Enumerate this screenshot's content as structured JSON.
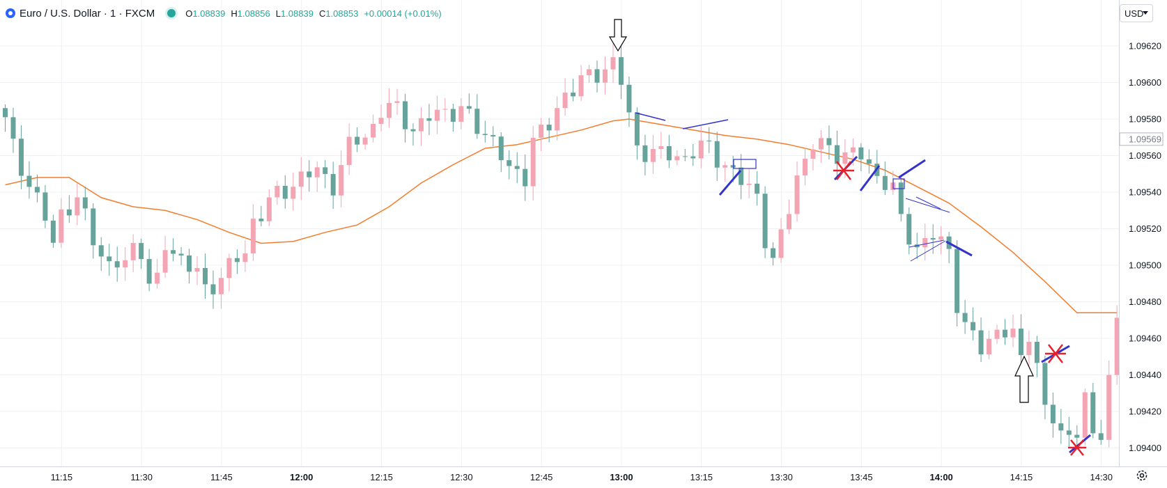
{
  "header": {
    "symbol_title": "Euro / U.S. Dollar · 1 · FXCM",
    "ohlc": [
      {
        "k": "O",
        "v": "1.08839"
      },
      {
        "k": "H",
        "v": "1.08856"
      },
      {
        "k": "L",
        "v": "1.08839"
      },
      {
        "k": "C",
        "v": "1.08853"
      }
    ],
    "change": "+0.00014 (+0.01%)",
    "currency": "USD"
  },
  "icons": {
    "logo": "fxcm-logo-icon",
    "status": "market-open-dot-icon",
    "currency_dropdown": "chevron-down-icon",
    "settings": "gear-icon"
  },
  "colors": {
    "up": "#f4a5b4",
    "down": "#66a39b",
    "ma": "#f57c2b",
    "grid": "#eef0f4",
    "axis_text": "#131722",
    "annot_blue": "#3333cc",
    "annot_red": "#e8202a"
  },
  "chart_data": {
    "type": "candlestick",
    "ylim": [
      1.09388,
      1.09634
    ],
    "y_ticks": [
      "1.09620",
      "1.09600",
      "1.09580",
      "1.09560",
      "1.09540",
      "1.09520",
      "1.09500",
      "1.09480",
      "1.09460",
      "1.09440",
      "1.09420",
      "1.09400"
    ],
    "current_price_label": "1.09569",
    "x_ticks": [
      {
        "label": "11:15",
        "bar": 7,
        "bold": false
      },
      {
        "label": "11:30",
        "bar": 17,
        "bold": false
      },
      {
        "label": "11:45",
        "bar": 27,
        "bold": false
      },
      {
        "label": "12:00",
        "bar": 37,
        "bold": true
      },
      {
        "label": "12:15",
        "bar": 47,
        "bold": false
      },
      {
        "label": "12:30",
        "bar": 57,
        "bold": false
      },
      {
        "label": "12:45",
        "bar": 67,
        "bold": false
      },
      {
        "label": "13:00",
        "bar": 77,
        "bold": true
      },
      {
        "label": "13:15",
        "bar": 87,
        "bold": false
      },
      {
        "label": "13:30",
        "bar": 97,
        "bold": false
      },
      {
        "label": "13:45",
        "bar": 107,
        "bold": false
      },
      {
        "label": "14:00",
        "bar": 117,
        "bold": true
      },
      {
        "label": "14:15",
        "bar": 127,
        "bold": false
      },
      {
        "label": "14:30",
        "bar": 137,
        "bold": false
      }
    ],
    "anchors": [
      [
        0,
        1.09578
      ],
      [
        1,
        1.09565
      ],
      [
        3,
        1.09545
      ],
      [
        5,
        1.09525
      ],
      [
        6,
        1.09512
      ],
      [
        7,
        1.0953
      ],
      [
        9,
        1.09535
      ],
      [
        11,
        1.09515
      ],
      [
        13,
        1.095
      ],
      [
        15,
        1.095
      ],
      [
        16,
        1.0951
      ],
      [
        17,
        1.0951
      ],
      [
        18,
        1.0949
      ],
      [
        19,
        1.0949
      ],
      [
        20,
        1.0951
      ],
      [
        22,
        1.09505
      ],
      [
        24,
        1.09495
      ],
      [
        25,
        1.09485
      ],
      [
        28,
        1.095
      ],
      [
        30,
        1.09505
      ],
      [
        31,
        1.09525
      ],
      [
        33,
        1.09535
      ],
      [
        35,
        1.0954
      ],
      [
        37,
        1.0955
      ],
      [
        39,
        1.0955
      ],
      [
        41,
        1.09545
      ],
      [
        43,
        1.09565
      ],
      [
        45,
        1.0957
      ],
      [
        47,
        1.09585
      ],
      [
        49,
        1.09585
      ],
      [
        51,
        1.09575
      ],
      [
        53,
        1.0958
      ],
      [
        55,
        1.09585
      ],
      [
        57,
        1.09585
      ],
      [
        59,
        1.09575
      ],
      [
        61,
        1.0957
      ],
      [
        63,
        1.0955
      ],
      [
        65,
        1.0955
      ],
      [
        66,
        1.0957
      ],
      [
        68,
        1.09575
      ],
      [
        70,
        1.09595
      ],
      [
        72,
        1.096
      ],
      [
        74,
        1.09605
      ],
      [
        76,
        1.09612
      ],
      [
        77,
        1.096
      ],
      [
        78,
        1.0958
      ],
      [
        79,
        1.09565
      ],
      [
        82,
        1.0956
      ],
      [
        85,
        1.0956
      ],
      [
        88,
        1.09565
      ],
      [
        90,
        1.09555
      ],
      [
        92,
        1.09545
      ],
      [
        94,
        1.0954
      ],
      [
        95,
        1.09515
      ],
      [
        96,
        1.095
      ],
      [
        97,
        1.09515
      ],
      [
        99,
        1.0955
      ],
      [
        101,
        1.09565
      ],
      [
        103,
        1.09565
      ],
      [
        105,
        1.0956
      ],
      [
        107,
        1.0956
      ],
      [
        109,
        1.0955
      ],
      [
        111,
        1.0954
      ],
      [
        112,
        1.09525
      ],
      [
        114,
        1.0951
      ],
      [
        116,
        1.09515
      ],
      [
        118,
        1.0951
      ],
      [
        119,
        1.0948
      ],
      [
        120,
        1.09465
      ],
      [
        122,
        1.09455
      ],
      [
        124,
        1.09465
      ],
      [
        126,
        1.0946
      ],
      [
        127,
        1.0945
      ],
      [
        128,
        1.09465
      ],
      [
        129,
        1.09445
      ],
      [
        130,
        1.0942
      ],
      [
        131,
        1.09415
      ],
      [
        132,
        1.09408
      ],
      [
        134,
        1.0941
      ],
      [
        135,
        1.09425
      ],
      [
        136,
        1.09405
      ],
      [
        137,
        1.0941
      ],
      [
        138,
        1.0944
      ],
      [
        139,
        1.0947
      ]
    ],
    "ma_line": [
      [
        0,
        1.09544
      ],
      [
        4,
        1.09548
      ],
      [
        8,
        1.09548
      ],
      [
        12,
        1.09537
      ],
      [
        16,
        1.09532
      ],
      [
        20,
        1.0953
      ],
      [
        24,
        1.09525
      ],
      [
        28,
        1.09518
      ],
      [
        32,
        1.09512
      ],
      [
        36,
        1.09513
      ],
      [
        40,
        1.09518
      ],
      [
        44,
        1.09522
      ],
      [
        48,
        1.09532
      ],
      [
        52,
        1.09545
      ],
      [
        56,
        1.09555
      ],
      [
        60,
        1.09564
      ],
      [
        64,
        1.09566
      ],
      [
        68,
        1.0957
      ],
      [
        72,
        1.09574
      ],
      [
        76,
        1.09579
      ],
      [
        78,
        1.0958
      ],
      [
        82,
        1.09577
      ],
      [
        86,
        1.09574
      ],
      [
        90,
        1.09571
      ],
      [
        94,
        1.09569
      ],
      [
        98,
        1.09566
      ],
      [
        102,
        1.09562
      ],
      [
        106,
        1.09558
      ],
      [
        110,
        1.09552
      ],
      [
        114,
        1.09543
      ],
      [
        118,
        1.09534
      ],
      [
        122,
        1.09521
      ],
      [
        126,
        1.09507
      ],
      [
        130,
        1.09491
      ],
      [
        134,
        1.09474
      ],
      [
        139,
        1.09474
      ]
    ]
  }
}
